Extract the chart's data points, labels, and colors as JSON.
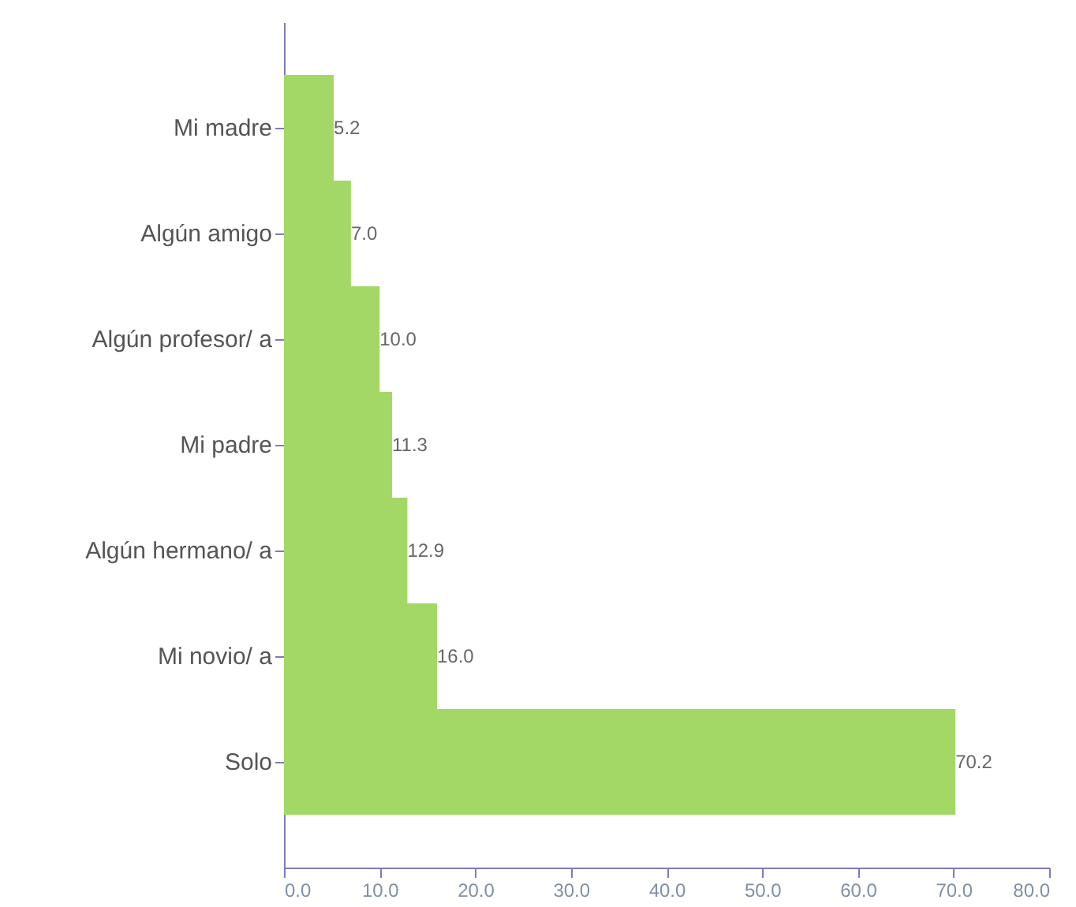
{
  "chart_data": {
    "type": "bar",
    "orientation": "horizontal",
    "categories": [
      "Mi madre",
      "Algún amigo",
      "Algún profesor/ a",
      "Mi padre",
      "Algún hermano/ a",
      "Mi novio/ a",
      "Solo"
    ],
    "values": [
      5.2,
      7.0,
      10.0,
      11.3,
      12.9,
      16.0,
      70.2
    ],
    "value_labels": [
      "5.2",
      "7.0",
      "10.0",
      "11.3",
      "12.9",
      "16.0",
      "70.2"
    ],
    "color": "#a3d867",
    "xlim": [
      0,
      80
    ],
    "xticks": [
      {
        "value": 0,
        "label": "0.0"
      },
      {
        "value": 10,
        "label": "10.0"
      },
      {
        "value": 20,
        "label": "20.0"
      },
      {
        "value": 30,
        "label": "30.0"
      },
      {
        "value": 40,
        "label": "40.0"
      },
      {
        "value": 50,
        "label": "50.0"
      },
      {
        "value": 60,
        "label": "60.0"
      },
      {
        "value": 70,
        "label": "70.0"
      },
      {
        "value": 80,
        "label": "80.0"
      }
    ],
    "grid": false
  }
}
